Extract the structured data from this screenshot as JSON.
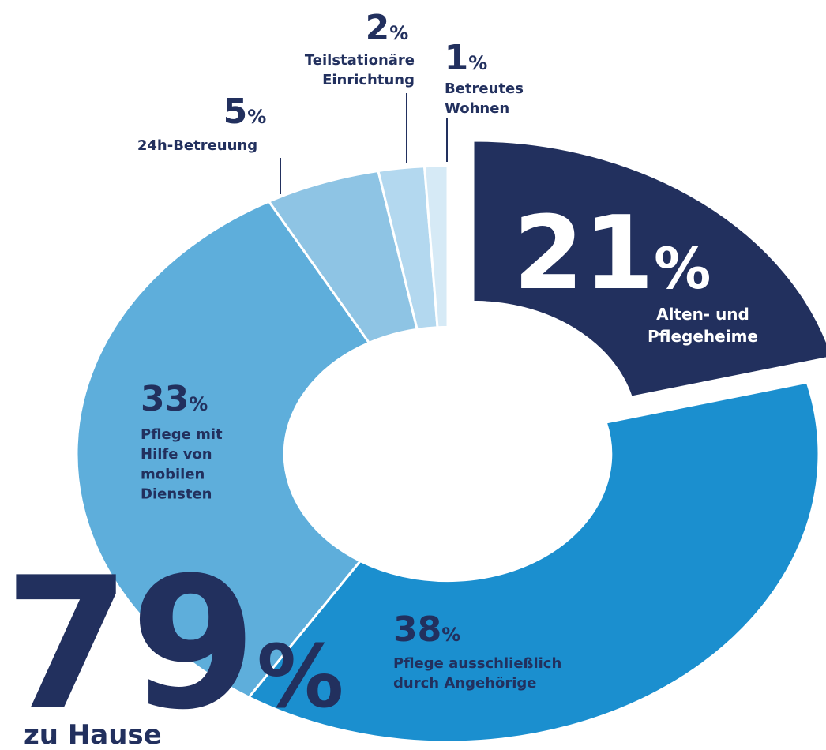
{
  "chart_data": {
    "type": "donut",
    "categories": [
      "Alten- und\nPflegeheime",
      "Pflege ausschließlich\ndurch Angehörige",
      "Pflege mit\nHilfe von\nmobilen\nDiensten",
      "24h-Betreuung",
      "Teilstationäre\nEinrichtung",
      "Betreutes\nWohnen"
    ],
    "values": [
      21,
      38,
      33,
      5,
      2,
      1
    ],
    "unit": "%",
    "colors": [
      "#22305e",
      "#1b8fcf",
      "#5eaedb",
      "#8ec4e4",
      "#b3d8ef",
      "#d6eaf6"
    ],
    "annotation": {
      "value": 79,
      "text": "zu Hause"
    }
  }
}
